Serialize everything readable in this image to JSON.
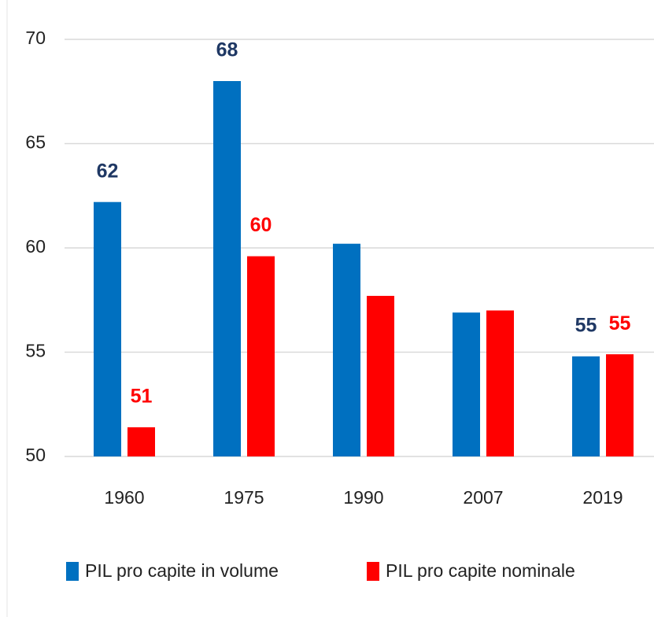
{
  "chart_data": {
    "type": "bar",
    "categories": [
      "1960",
      "1975",
      "1990",
      "2007",
      "2019"
    ],
    "series": [
      {
        "name": "PIL pro capite in volume",
        "color": "#0070c0",
        "label_color": "#1f3864",
        "values": [
          62.2,
          68.0,
          60.2,
          56.9,
          54.8
        ],
        "value_labels": [
          "62",
          "68",
          null,
          null,
          "55"
        ]
      },
      {
        "name": "PIL pro capite nominale",
        "color": "#ff0000",
        "label_color": "#ff0000",
        "values": [
          51.4,
          59.6,
          57.7,
          57.0,
          54.9
        ],
        "value_labels": [
          "51",
          "60",
          null,
          null,
          "55"
        ]
      }
    ],
    "ylim": [
      50,
      70
    ],
    "yticks": [
      50,
      55,
      60,
      65,
      70
    ],
    "grid": true,
    "legend": "bottom"
  }
}
